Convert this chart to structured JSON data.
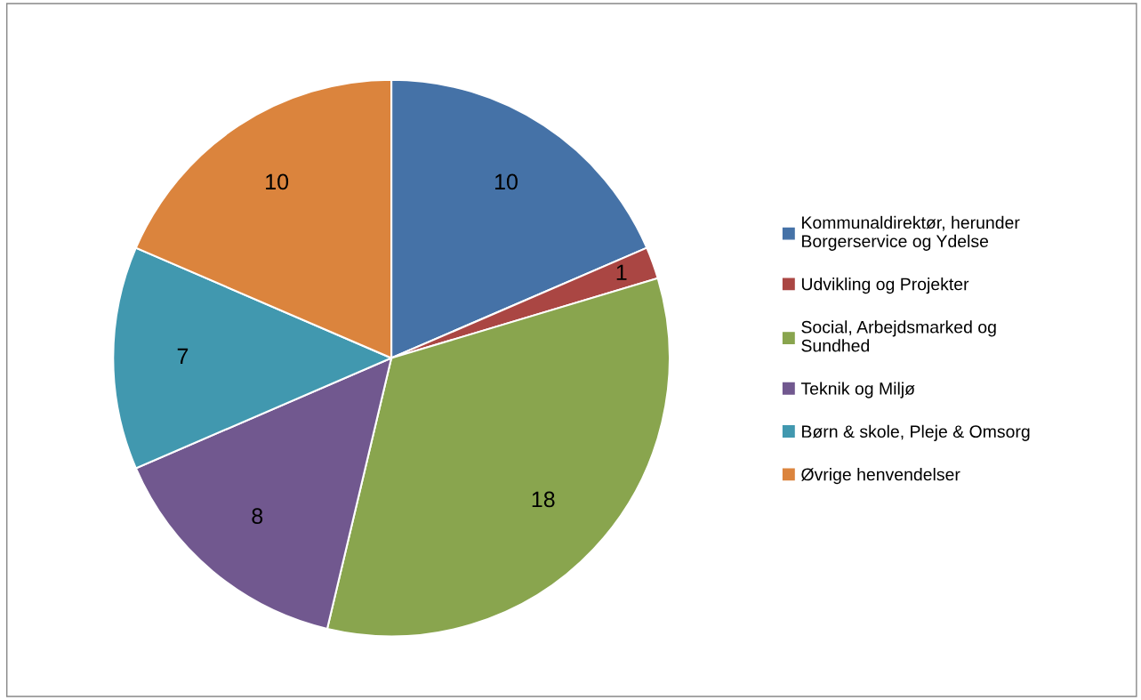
{
  "chart_data": {
    "type": "pie",
    "categories": [
      "Kommunaldirektør, herunder\nBorgerservice og Ydelse",
      "Udvikling og Projekter",
      "Social, Arbejdsmarked og\nSundhed",
      "Teknik og Miljø",
      "Børn & skole, Pleje & Omsorg",
      "Øvrige henvendelser"
    ],
    "values": [
      10,
      1,
      18,
      8,
      7,
      10
    ],
    "colors": [
      "#4572a7",
      "#aa4643",
      "#89a54e",
      "#71588f",
      "#4198af",
      "#db843d"
    ],
    "data_labels": true,
    "legend": "right"
  }
}
